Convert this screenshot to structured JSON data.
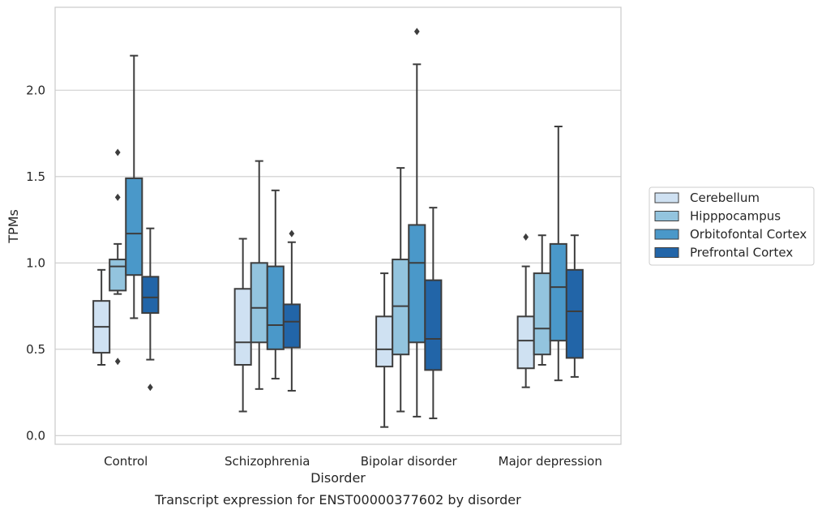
{
  "chart_data": {
    "type": "box",
    "caption": "Transcript expression for ENST00000377602 by disorder",
    "xlabel": "Disorder",
    "ylabel": "TPMs",
    "ylim": [
      -0.05,
      2.48
    ],
    "yticks": [
      0.0,
      0.5,
      1.0,
      1.5,
      2.0
    ],
    "ytick_labels": [
      "0.0",
      "0.5",
      "1.0",
      "1.5",
      "2.0"
    ],
    "grid": "horizontal",
    "legend_position": "right",
    "categories": [
      "Control",
      "Schizophrenia",
      "Bipolar disorder",
      "Major depression"
    ],
    "series": [
      {
        "name": "Cerebellum",
        "color": "#cfe1f2",
        "boxes": [
          {
            "whislo": 0.41,
            "q1": 0.48,
            "med": 0.63,
            "q3": 0.78,
            "whishi": 0.96,
            "fliers": []
          },
          {
            "whislo": 0.14,
            "q1": 0.41,
            "med": 0.54,
            "q3": 0.85,
            "whishi": 1.14,
            "fliers": []
          },
          {
            "whislo": 0.05,
            "q1": 0.4,
            "med": 0.5,
            "q3": 0.69,
            "whishi": 0.94,
            "fliers": []
          },
          {
            "whislo": 0.28,
            "q1": 0.39,
            "med": 0.55,
            "q3": 0.69,
            "whishi": 0.98,
            "fliers": [
              1.15
            ]
          }
        ]
      },
      {
        "name": "Hipppocampus",
        "color": "#93c4de",
        "boxes": [
          {
            "whislo": 0.82,
            "q1": 0.84,
            "med": 0.98,
            "q3": 1.02,
            "whishi": 1.11,
            "fliers": [
              1.64,
              1.38,
              0.43
            ]
          },
          {
            "whislo": 0.27,
            "q1": 0.54,
            "med": 0.74,
            "q3": 1.0,
            "whishi": 1.59,
            "fliers": []
          },
          {
            "whislo": 0.14,
            "q1": 0.47,
            "med": 0.75,
            "q3": 1.02,
            "whishi": 1.55,
            "fliers": []
          },
          {
            "whislo": 0.41,
            "q1": 0.47,
            "med": 0.62,
            "q3": 0.94,
            "whishi": 1.16,
            "fliers": []
          }
        ]
      },
      {
        "name": "Orbitofontal Cortex",
        "color": "#4a98c9",
        "boxes": [
          {
            "whislo": 0.68,
            "q1": 0.93,
            "med": 1.17,
            "q3": 1.49,
            "whishi": 2.2,
            "fliers": []
          },
          {
            "whislo": 0.33,
            "q1": 0.5,
            "med": 0.64,
            "q3": 0.98,
            "whishi": 1.42,
            "fliers": []
          },
          {
            "whislo": 0.11,
            "q1": 0.54,
            "med": 1.0,
            "q3": 1.22,
            "whishi": 2.15,
            "fliers": [
              2.34
            ]
          },
          {
            "whislo": 0.32,
            "q1": 0.55,
            "med": 0.86,
            "q3": 1.11,
            "whishi": 1.79,
            "fliers": []
          }
        ]
      },
      {
        "name": "Prefrontal Cortex",
        "color": "#2265a8",
        "boxes": [
          {
            "whislo": 0.44,
            "q1": 0.71,
            "med": 0.8,
            "q3": 0.92,
            "whishi": 1.2,
            "fliers": [
              0.28
            ]
          },
          {
            "whislo": 0.26,
            "q1": 0.51,
            "med": 0.66,
            "q3": 0.76,
            "whishi": 1.12,
            "fliers": [
              1.17
            ]
          },
          {
            "whislo": 0.1,
            "q1": 0.38,
            "med": 0.56,
            "q3": 0.9,
            "whishi": 1.32,
            "fliers": []
          },
          {
            "whislo": 0.34,
            "q1": 0.45,
            "med": 0.72,
            "q3": 0.96,
            "whishi": 1.16,
            "fliers": []
          }
        ]
      }
    ]
  }
}
